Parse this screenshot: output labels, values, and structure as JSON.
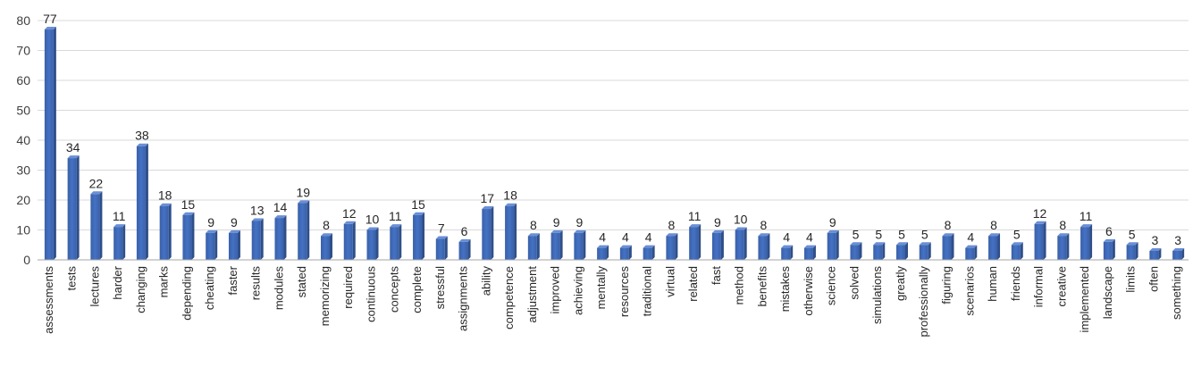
{
  "chart_data": {
    "type": "bar",
    "title": "",
    "xlabel": "",
    "ylabel": "",
    "ylim": [
      0,
      80
    ],
    "yticks": [
      0,
      10,
      20,
      30,
      40,
      50,
      60,
      70,
      80
    ],
    "grid": true,
    "legend": "none",
    "bar_color": "#4472C4",
    "categories": [
      "assessments",
      "tests",
      "lectures",
      "harder",
      "changing",
      "marks",
      "depending",
      "cheating",
      "faster",
      "results",
      "modules",
      "stated",
      "memorizing",
      "required",
      "continuous",
      "concepts",
      "complete",
      "stressful",
      "assignments",
      "ability",
      "competence",
      "adjustment",
      "improved",
      "achieving",
      "mentally",
      "resources",
      "traditional",
      "virtual",
      "related",
      "fast",
      "method",
      "benefits",
      "mistakes",
      "otherwise",
      "science",
      "solved",
      "simulations",
      "greatly",
      "professionally",
      "figuring",
      "scenarios",
      "human",
      "friends",
      "informal",
      "creative",
      "implemented",
      "landscape",
      "limits",
      "often",
      "something"
    ],
    "values": [
      77,
      34,
      22,
      11,
      38,
      18,
      15,
      9,
      9,
      13,
      14,
      19,
      8,
      12,
      10,
      11,
      15,
      7,
      6,
      17,
      18,
      8,
      9,
      9,
      4,
      4,
      4,
      8,
      11,
      9,
      10,
      8,
      4,
      4,
      9,
      5,
      5,
      5,
      5,
      8,
      4,
      8,
      5,
      12,
      8,
      11,
      6,
      5,
      3,
      3
    ]
  }
}
